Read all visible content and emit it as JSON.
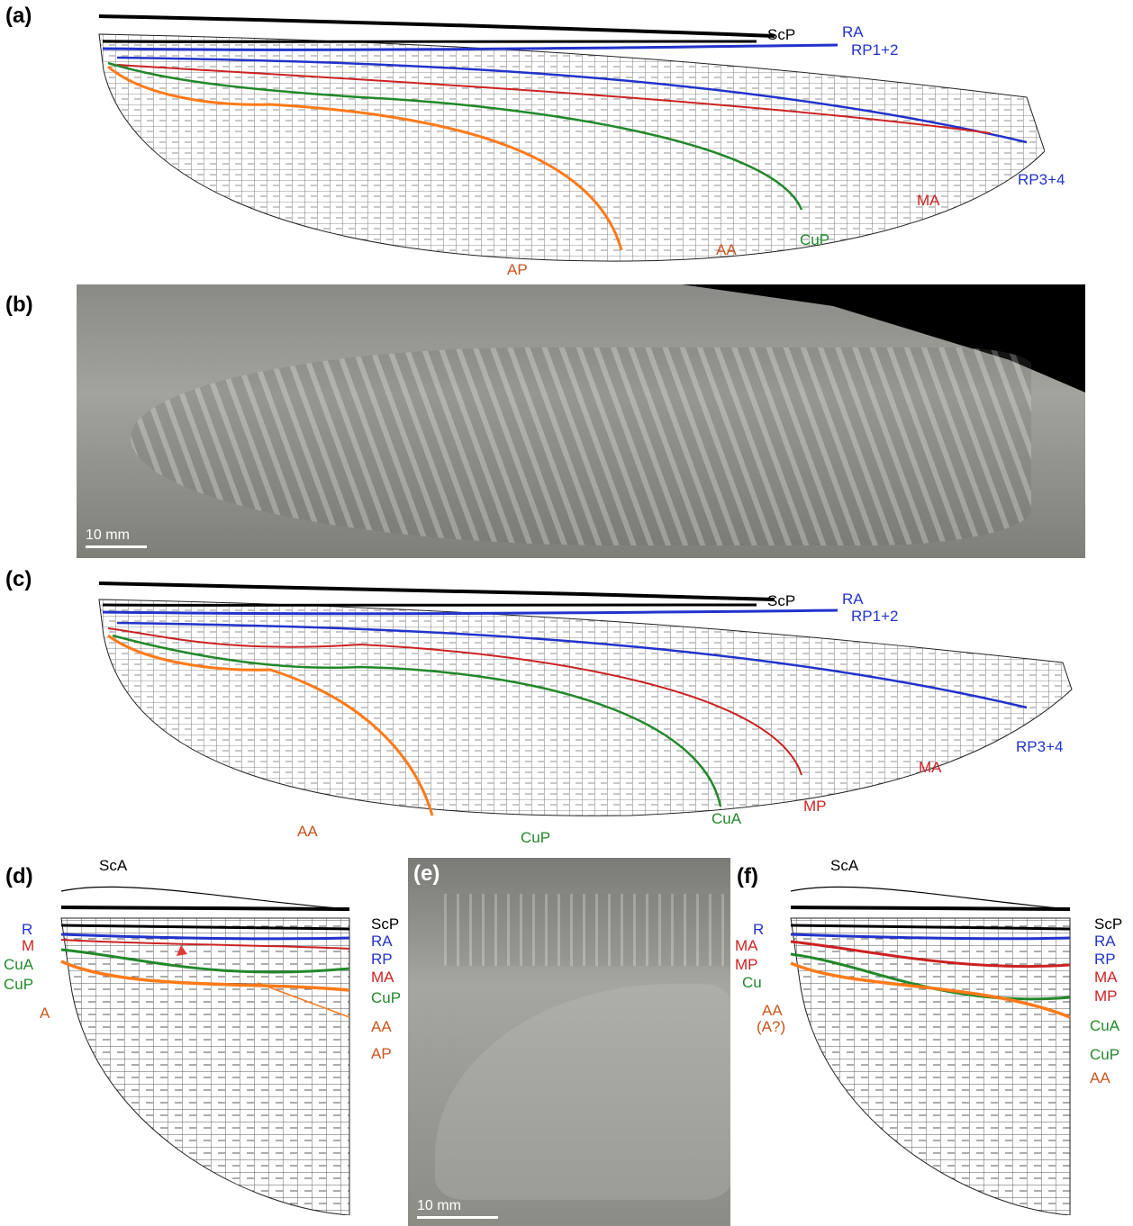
{
  "panels": {
    "a": "(a)",
    "b": "(b)",
    "c": "(c)",
    "d": "(d)",
    "e": "(e)",
    "f": "(f)"
  },
  "colors": {
    "R": "#2233cc",
    "M": "#cc2222",
    "Cu": "#22882a",
    "A": "#ff7a1a",
    "ScP": "#000000",
    "labelOrange": "#c8561e"
  },
  "a": {
    "ScP": "ScP",
    "RA": "RA",
    "RP12": "RP1+2",
    "RP34": "RP3+4",
    "MA": "MA",
    "CuP": "CuP",
    "AA": "AA",
    "AP": "AP"
  },
  "b": {
    "scale": "10 mm"
  },
  "c": {
    "ScP": "ScP",
    "RA": "RA",
    "RP12": "RP1+2",
    "RP34": "RP3+4",
    "MA": "MA",
    "MP": "MP",
    "CuA": "CuA",
    "CuP": "CuP",
    "AA": "AA"
  },
  "d": {
    "ScA": "ScA",
    "R": "R",
    "M": "M",
    "CuA": "CuA",
    "CuP": "CuP",
    "A": "A",
    "ScP": "ScP",
    "RA": "RA",
    "RP": "RP",
    "MA": "MA",
    "CuP2": "CuP",
    "AA": "AA",
    "AP": "AP"
  },
  "e": {
    "scale": "10 mm"
  },
  "f": {
    "ScA": "ScA",
    "R": "R",
    "MA": "MA",
    "MP": "MP",
    "Cu": "Cu",
    "AA": "AA",
    "AAq": "(A?)",
    "ScP": "ScP",
    "RA": "RA",
    "RP": "RP",
    "MA2": "MA",
    "MP2": "MP",
    "CuA": "CuA",
    "CuP": "CuP",
    "AA2": "AA"
  }
}
